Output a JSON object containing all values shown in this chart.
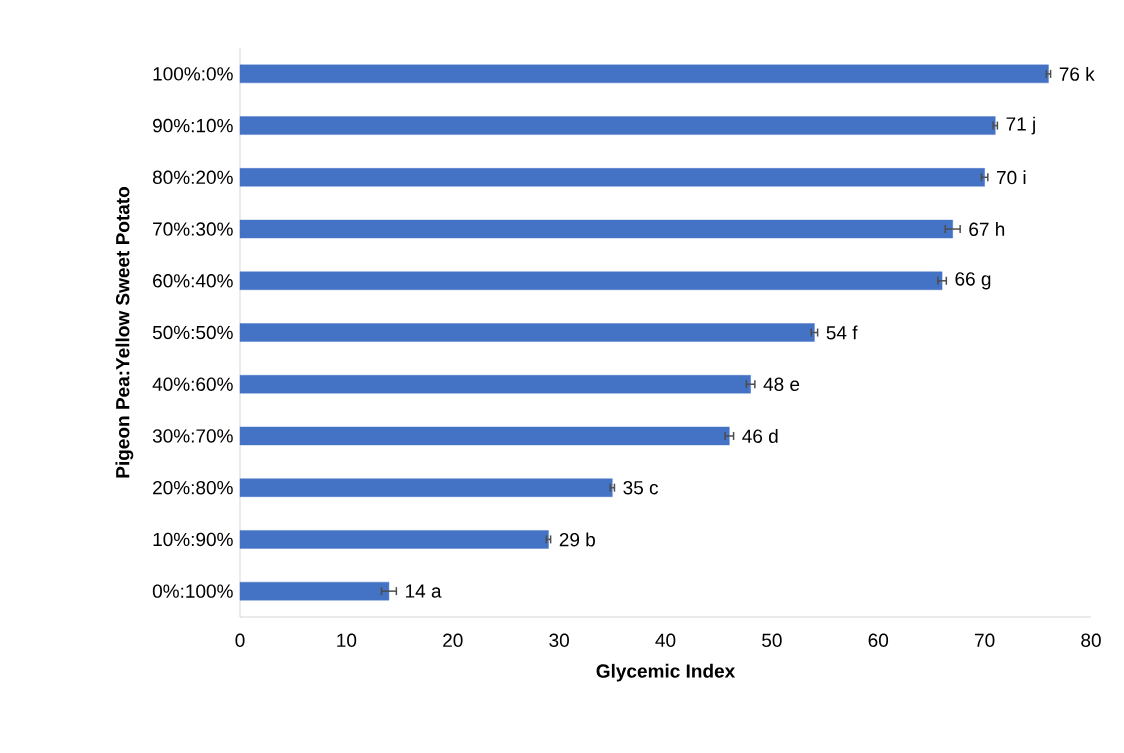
{
  "chart_data": {
    "type": "bar",
    "orientation": "horizontal",
    "xlabel": "Glycemic Index",
    "ylabel": "Pigeon Pea:Yellow Sweet Potato",
    "categories": [
      "100%:0%",
      "90%:10%",
      "80%:20%",
      "70%:30%",
      "60%:40%",
      "50%:50%",
      "40%:60%",
      "30%:70%",
      "20%:80%",
      "10%:90%",
      "0%:100%"
    ],
    "values": [
      76,
      71,
      70,
      67,
      66,
      54,
      48,
      46,
      35,
      29,
      14
    ],
    "errors": [
      0.2,
      0.2,
      0.3,
      0.7,
      0.4,
      0.3,
      0.4,
      0.4,
      0.2,
      0.2,
      0.7
    ],
    "value_labels": [
      "76 k",
      "71 j",
      "70 i",
      "67 h",
      "66 g",
      "54 f",
      "48 e",
      "46 d",
      "35 c",
      "29 b",
      "14 a"
    ],
    "color": "#4472c4",
    "xlim": [
      0,
      80
    ],
    "xticks": [
      0,
      10,
      20,
      30,
      40,
      50,
      60,
      70,
      80
    ]
  }
}
